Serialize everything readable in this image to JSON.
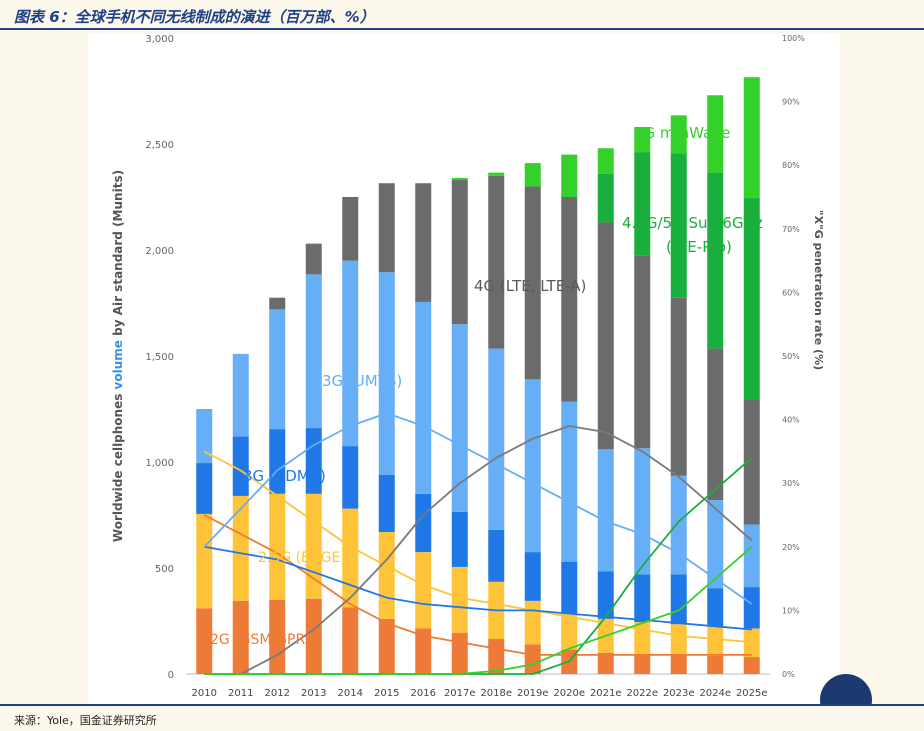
{
  "header": {
    "title": "图表 6：全球手机不同无线制成的演进（百万部、%）"
  },
  "footer": {
    "source": "来源：Yole，国金证券研究所"
  },
  "chart_data": {
    "type": "bar",
    "stacked": true,
    "categories": [
      "2010",
      "2011",
      "2012",
      "2013",
      "2014",
      "2015",
      "2016",
      "2017e",
      "2018e",
      "2019e",
      "2020e",
      "2021e",
      "2022e",
      "2023e",
      "2024e",
      "2025e"
    ],
    "ylabel": "Worldwide cellphones volume by Air standard (Munits)",
    "ylabel_parts": [
      "Worldwide cellphones ",
      "volume",
      " by Air standard (Munits)"
    ],
    "ylim": [
      0,
      3000
    ],
    "yticks": [
      "0",
      "500",
      "1,000",
      "1,500",
      "2,000",
      "2,500",
      "3,000"
    ],
    "y2label": "\"X\"G penetration rate (%)",
    "y2lim": [
      0,
      100
    ],
    "y2ticks": [
      "0%",
      "10%",
      "20%",
      "30%",
      "40%",
      "50%",
      "60%",
      "70%",
      "80%",
      "90%",
      "100%"
    ],
    "grid": false,
    "series": [
      {
        "name": "2G (GSM/GPRS)",
        "color": "#ee7a38",
        "values": [
          310,
          345,
          350,
          355,
          315,
          260,
          215,
          195,
          165,
          140,
          115,
          100,
          95,
          90,
          85,
          80
        ]
      },
      {
        "name": "2.5G (EDGE)",
        "color": "#ffc33a",
        "values": [
          445,
          495,
          500,
          495,
          465,
          410,
          360,
          310,
          270,
          205,
          170,
          160,
          150,
          145,
          140,
          135
        ]
      },
      {
        "name": "3G (CDMA)",
        "color": "#1f78e6",
        "values": [
          240,
          280,
          305,
          310,
          295,
          270,
          275,
          260,
          245,
          230,
          245,
          225,
          225,
          235,
          180,
          195
        ]
      },
      {
        "name": "3G (UMTS)",
        "color": "#66aef5",
        "values": [
          255,
          390,
          565,
          725,
          875,
          955,
          905,
          885,
          855,
          815,
          755,
          575,
          595,
          465,
          415,
          295
        ]
      },
      {
        "name": "4G (LTE, LTE-A)",
        "color": "#6b6b6b",
        "values": [
          0,
          0,
          55,
          145,
          300,
          420,
          560,
          680,
          815,
          910,
          965,
          1070,
          910,
          840,
          715,
          590
        ]
      },
      {
        "name": "4.5G/5G Sub-6GHz (LTE-Pro)",
        "color": "#1aae3c",
        "values": [
          0,
          0,
          0,
          0,
          0,
          0,
          0,
          0,
          0,
          0,
          0,
          230,
          485,
          680,
          830,
          950
        ]
      },
      {
        "name": "5G mmWave",
        "color": "#33d12a",
        "values": [
          0,
          0,
          0,
          0,
          0,
          0,
          0,
          10,
          15,
          110,
          200,
          120,
          120,
          180,
          365,
          570
        ]
      }
    ],
    "lines": [
      {
        "name": "2G (GSM/GPRS)",
        "color": "#ee7a38",
        "values": [
          25,
          22,
          19,
          15,
          11,
          8,
          6,
          5,
          4,
          3,
          3,
          3,
          3,
          3,
          3,
          3
        ]
      },
      {
        "name": "2.5G (EDGE)",
        "color": "#ffc33a",
        "values": [
          35,
          32,
          28,
          24,
          20,
          17,
          14,
          12,
          11,
          10,
          9,
          8,
          7,
          6,
          5.5,
          5
        ]
      },
      {
        "name": "3G (CDMA)",
        "color": "#1f78e6",
        "values": [
          20,
          19,
          18,
          16,
          14,
          12,
          11,
          10.5,
          10,
          10,
          9.5,
          9,
          8.5,
          8,
          7.5,
          7
        ]
      },
      {
        "name": "3G (UMTS)",
        "color": "#66aef5",
        "values": [
          20,
          26,
          32,
          36,
          39,
          41,
          39,
          36,
          33,
          30,
          27,
          24,
          22,
          19,
          15,
          11
        ]
      },
      {
        "name": "4G (LTE, LTE-A)",
        "color": "#7a7a7a",
        "values": [
          0,
          0,
          3,
          7,
          12,
          18,
          25,
          30,
          34,
          37,
          39,
          38,
          35,
          31,
          26,
          21
        ]
      },
      {
        "name": "4.5G/5G Sub-6GHz (LTE-Pro)",
        "color": "#1aae3c",
        "values": [
          0,
          0,
          0,
          0,
          0,
          0,
          0,
          0,
          0,
          0,
          2,
          9,
          17,
          24,
          29,
          34
        ]
      },
      {
        "name": "5G mmWave",
        "color": "#33d12a",
        "values": [
          0,
          0,
          0,
          0,
          0,
          0,
          0,
          0,
          0.5,
          1.5,
          4,
          6,
          8,
          10,
          15,
          20
        ]
      }
    ],
    "annotations": [
      {
        "text": "5G mmWave",
        "color": "#33d12a"
      },
      {
        "text": "4.5G/5G Sub-6GHz",
        "color": "#1aae3c"
      },
      {
        "text": "(LTE-Pro)",
        "color": "#1aae3c"
      },
      {
        "text": "4G (LTE, LTE-A)",
        "color": "#5a5a5a"
      },
      {
        "text": "3G (UMTS)",
        "color": "#66aef5"
      },
      {
        "text": "3G (CDMA)",
        "color": "#1f78e6"
      },
      {
        "text": "2.5G (EDGE)",
        "color": "#ffc33a"
      },
      {
        "text": "2G (GSM/GPRS)",
        "color": "#ee7a38"
      }
    ]
  }
}
